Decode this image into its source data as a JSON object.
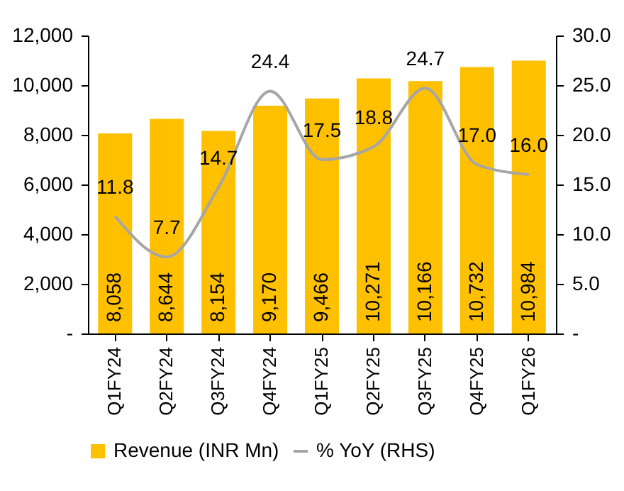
{
  "chart_data": {
    "type": "bar",
    "categories": [
      "Q1FY24",
      "Q2FY24",
      "Q3FY24",
      "Q4FY24",
      "Q1FY25",
      "Q2FY25",
      "Q3FY25",
      "Q4FY25",
      "Q1FY26"
    ],
    "series": [
      {
        "name": "Revenue (INR Mn)",
        "color": "#ffc000",
        "values": [
          8058,
          8644,
          8154,
          9170,
          9466,
          10271,
          10166,
          10732,
          10984
        ],
        "value_labels": [
          "8,058",
          "8,644",
          "8,154",
          "9,170",
          "9,466",
          "10,271",
          "10,166",
          "10,732",
          "10,984"
        ]
      },
      {
        "name": "% YoY  (RHS)",
        "type": "line",
        "axis": "y2",
        "color": "#a6a6a6",
        "values": [
          11.8,
          7.7,
          14.7,
          24.4,
          17.5,
          18.8,
          24.7,
          17.0,
          16.0
        ],
        "value_labels": [
          "11.8",
          "7.7",
          "14.7",
          "24.4",
          "17.5",
          "18.8",
          "24.7",
          "17.0",
          "16.0"
        ]
      }
    ],
    "ylim": [
      0,
      12000
    ],
    "yticks": [
      {
        "value": 0,
        "label": "-"
      },
      {
        "value": 2000,
        "label": "2,000"
      },
      {
        "value": 4000,
        "label": "4,000"
      },
      {
        "value": 6000,
        "label": "6,000"
      },
      {
        "value": 8000,
        "label": "8,000"
      },
      {
        "value": 10000,
        "label": "10,000"
      },
      {
        "value": 12000,
        "label": "12,000"
      }
    ],
    "y2lim": [
      0,
      30
    ],
    "y2ticks": [
      {
        "value": 0,
        "label": "-"
      },
      {
        "value": 5,
        "label": "5.0"
      },
      {
        "value": 10,
        "label": "10.0"
      },
      {
        "value": 15,
        "label": "15.0"
      },
      {
        "value": 20,
        "label": "20.0"
      },
      {
        "value": 25,
        "label": "25.0"
      },
      {
        "value": 30,
        "label": "30.0"
      }
    ],
    "legend": "bottom",
    "grid": false,
    "marker": "none",
    "line_style": "solid"
  }
}
